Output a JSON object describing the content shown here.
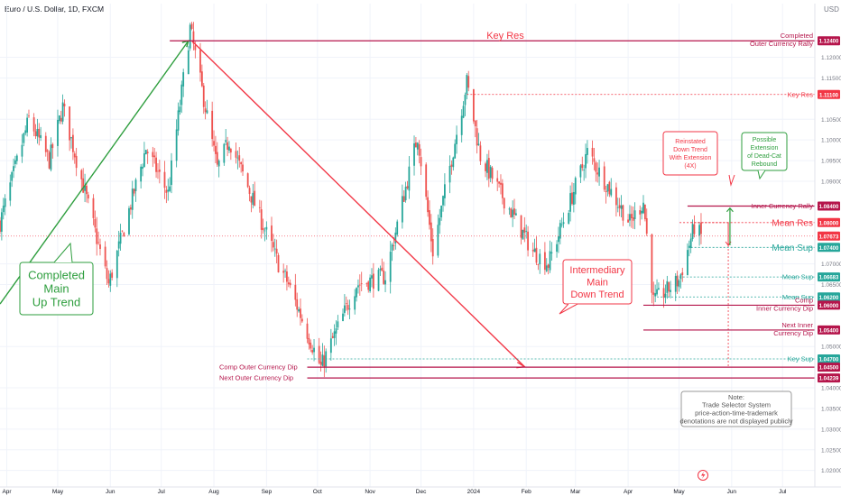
{
  "header": {
    "symbol_title": "Euro / U.S. Dollar, 1D, FXCM",
    "currency": "USD"
  },
  "chart_data": {
    "type": "candlestick",
    "ylim": [
      1.016,
      1.133
    ],
    "xlim": [
      "2023-03-28",
      "2024-07-20"
    ],
    "x_tick_labels": [
      {
        "label": "Apr",
        "date": "2023-04-01"
      },
      {
        "label": "May",
        "date": "2023-05-01"
      },
      {
        "label": "Jun",
        "date": "2023-06-01"
      },
      {
        "label": "Jul",
        "date": "2023-07-01"
      },
      {
        "label": "Aug",
        "date": "2023-08-01"
      },
      {
        "label": "Sep",
        "date": "2023-09-01"
      },
      {
        "label": "Oct",
        "date": "2023-10-01"
      },
      {
        "label": "Nov",
        "date": "2023-11-01"
      },
      {
        "label": "Dec",
        "date": "2023-12-01"
      },
      {
        "label": "2024",
        "date": "2024-01-01"
      },
      {
        "label": "Feb",
        "date": "2024-02-01"
      },
      {
        "label": "Mar",
        "date": "2024-03-01"
      },
      {
        "label": "Apr",
        "date": "2024-04-01"
      },
      {
        "label": "May",
        "date": "2024-05-01"
      },
      {
        "label": "Jun",
        "date": "2024-06-01"
      },
      {
        "label": "Jul",
        "date": "2024-07-01"
      }
    ],
    "y_tick_labels": [
      "1.12000",
      "1.11500",
      "1.10500",
      "1.10000",
      "1.09500",
      "1.09000",
      "1.07000",
      "1.06500",
      "1.05000",
      "1.04000",
      "1.03500",
      "1.03000",
      "1.02500",
      "1.02000"
    ],
    "colors": {
      "up": "#26a69a",
      "down": "#ef5350",
      "axis": "#787b86",
      "grid": "#f0f3fa"
    },
    "price_path": [
      {
        "d": "2023-03-28",
        "v": 1.08
      },
      {
        "d": "2023-04-14",
        "v": 1.105
      },
      {
        "d": "2023-04-26",
        "v": 1.095
      },
      {
        "d": "2023-05-04",
        "v": 1.108
      },
      {
        "d": "2023-05-31",
        "v": 1.065
      },
      {
        "d": "2023-06-22",
        "v": 1.098
      },
      {
        "d": "2023-07-05",
        "v": 1.087
      },
      {
        "d": "2023-07-18",
        "v": 1.127
      },
      {
        "d": "2023-08-03",
        "v": 1.093
      },
      {
        "d": "2023-08-10",
        "v": 1.1
      },
      {
        "d": "2023-09-08",
        "v": 1.07
      },
      {
        "d": "2023-09-14",
        "v": 1.065
      },
      {
        "d": "2023-10-03",
        "v": 1.045
      },
      {
        "d": "2023-10-24",
        "v": 1.065
      },
      {
        "d": "2023-11-10",
        "v": 1.067
      },
      {
        "d": "2023-11-29",
        "v": 1.101
      },
      {
        "d": "2023-12-08",
        "v": 1.073
      },
      {
        "d": "2023-12-28",
        "v": 1.114
      },
      {
        "d": "2024-01-05",
        "v": 1.096
      },
      {
        "d": "2024-02-05",
        "v": 1.073
      },
      {
        "d": "2024-02-14",
        "v": 1.07
      },
      {
        "d": "2024-03-08",
        "v": 1.097
      },
      {
        "d": "2024-04-02",
        "v": 1.08
      },
      {
        "d": "2024-04-10",
        "v": 1.085
      },
      {
        "d": "2024-04-16",
        "v": 1.061
      },
      {
        "d": "2024-05-01",
        "v": 1.066
      },
      {
        "d": "2024-05-10",
        "v": 1.079
      },
      {
        "d": "2024-05-14",
        "v": 1.0767
      }
    ],
    "levels": [
      {
        "label_left": "Key Res",
        "label_right": "Completed\nOuter Currency Rally",
        "price": 1.124,
        "price_label": "1.12400",
        "color": "#b5154b",
        "style": "solid"
      },
      {
        "label_right": "Key Res",
        "price": 1.111,
        "price_label": "1.11100",
        "color": "#f23645",
        "style": "dotted"
      },
      {
        "label_right": "Inner Currency Rally",
        "price": 1.084,
        "price_label": "1.08400",
        "color": "#b5154b",
        "style": "solid"
      },
      {
        "label_right": "Mean Res",
        "price": 1.08,
        "price_label": "1.08000",
        "color": "#f23645",
        "style": "dotted"
      },
      {
        "price": 1.07673,
        "price_label": "1.07673",
        "color": "#f23645",
        "style": "last"
      },
      {
        "label_right": "Mean Sup",
        "price": 1.074,
        "price_label": "1.07400",
        "color": "#26a69a",
        "style": "dotted"
      },
      {
        "label_right": "Mean Sup",
        "price": 1.06683,
        "price_label": "1.06683",
        "color": "#26a69a",
        "style": "dotted"
      },
      {
        "label_right": "Mean Sup",
        "price": 1.062,
        "price_label": "1.06200",
        "color": "#26a69a",
        "style": "dotted"
      },
      {
        "label_right": "Comp\nInner Currency Dip",
        "price": 1.06,
        "price_label": "1.06000",
        "color": "#b5154b",
        "style": "solid"
      },
      {
        "label_right": "Next Inner\nCurrency Dip",
        "price": 1.054,
        "price_label": "1.05400",
        "color": "#b5154b",
        "style": "solid"
      },
      {
        "label_right": "Key Sup",
        "price": 1.047,
        "price_label": "1.04700",
        "color": "#26a69a",
        "style": "dotted"
      },
      {
        "label_left": "Comp Outer Currency Dip",
        "price": 1.045,
        "price_label": "1.04500",
        "color": "#b5154b",
        "style": "solid"
      },
      {
        "label_left": "Next Outer Currency Dip",
        "price": 1.04239,
        "price_label": "1.04239",
        "color": "#b5154b",
        "style": "solid"
      }
    ],
    "annotations": [
      {
        "text": "Completed\nMain\nUp Trend",
        "color": "#2e9e3e"
      },
      {
        "text": "Intermediary\nMain\nDown Trend",
        "color": "#f23645"
      },
      {
        "text": "Reinstated\nDown Trend\nWith Extension\n(4X)",
        "color": "#f23645"
      },
      {
        "text": "Possible\nExtension\nof Dead-Cat\nRebound",
        "color": "#2e9e3e"
      },
      {
        "text": "Note:\nTrade Selector System\nprice-action-time-trademark\ndenotations are not displayed publicly",
        "color": "#555555"
      }
    ]
  }
}
